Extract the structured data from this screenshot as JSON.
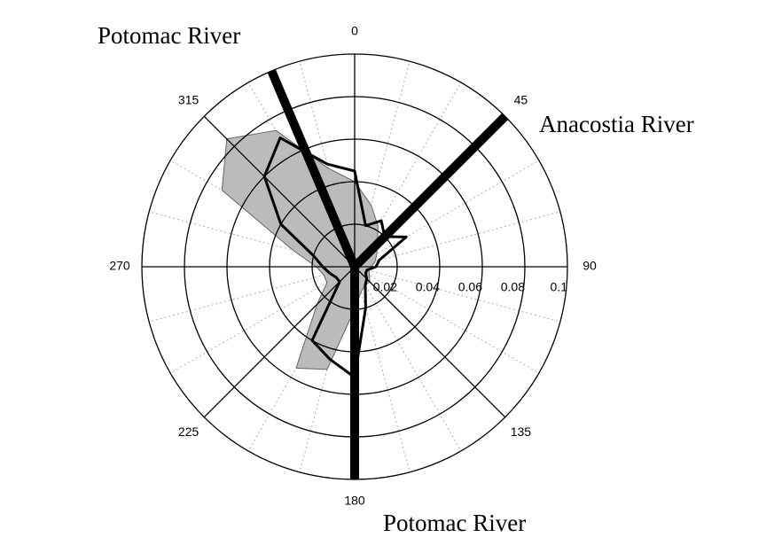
{
  "chart_data": {
    "type": "polar",
    "rlim": [
      0,
      0.1
    ],
    "rticks": [
      0.02,
      0.04,
      0.06,
      0.08,
      0.1
    ],
    "angle_ticks": [
      0,
      45,
      90,
      135,
      180,
      225,
      270,
      315
    ],
    "theta": [
      0,
      15,
      30,
      45,
      60,
      75,
      90,
      105,
      120,
      135,
      150,
      165,
      180,
      195,
      210,
      225,
      240,
      255,
      270,
      285,
      300,
      315,
      330,
      345
    ],
    "series": [
      {
        "color": "#bbbbbb",
        "fill": true,
        "values": [
          0.04,
          0.03,
          0.022,
          0.015,
          0.012,
          0.01,
          0.008,
          0.007,
          0.008,
          0.01,
          0.01,
          0.012,
          0.02,
          0.05,
          0.055,
          0.025,
          0.015,
          0.015,
          0.018,
          0.03,
          0.072,
          0.085,
          0.074,
          0.048
        ]
      },
      {
        "color": "#000000",
        "fill": false,
        "values": [
          0.045,
          0.02,
          0.025,
          0.02,
          0.028,
          0.012,
          0.01,
          0.006,
          0.006,
          0.008,
          0.01,
          0.02,
          0.052,
          0.045,
          0.04,
          0.01,
          0.01,
          0.012,
          0.015,
          0.02,
          0.04,
          0.06,
          0.07,
          0.05
        ]
      }
    ],
    "rivers": [
      {
        "name": "Potomac River",
        "angle": 337,
        "value": 0.1
      },
      {
        "name": "Anacostia River",
        "angle": 45,
        "value": 0.1
      },
      {
        "name": "Potomac River",
        "angle": 180,
        "value": 0.1
      }
    ]
  }
}
